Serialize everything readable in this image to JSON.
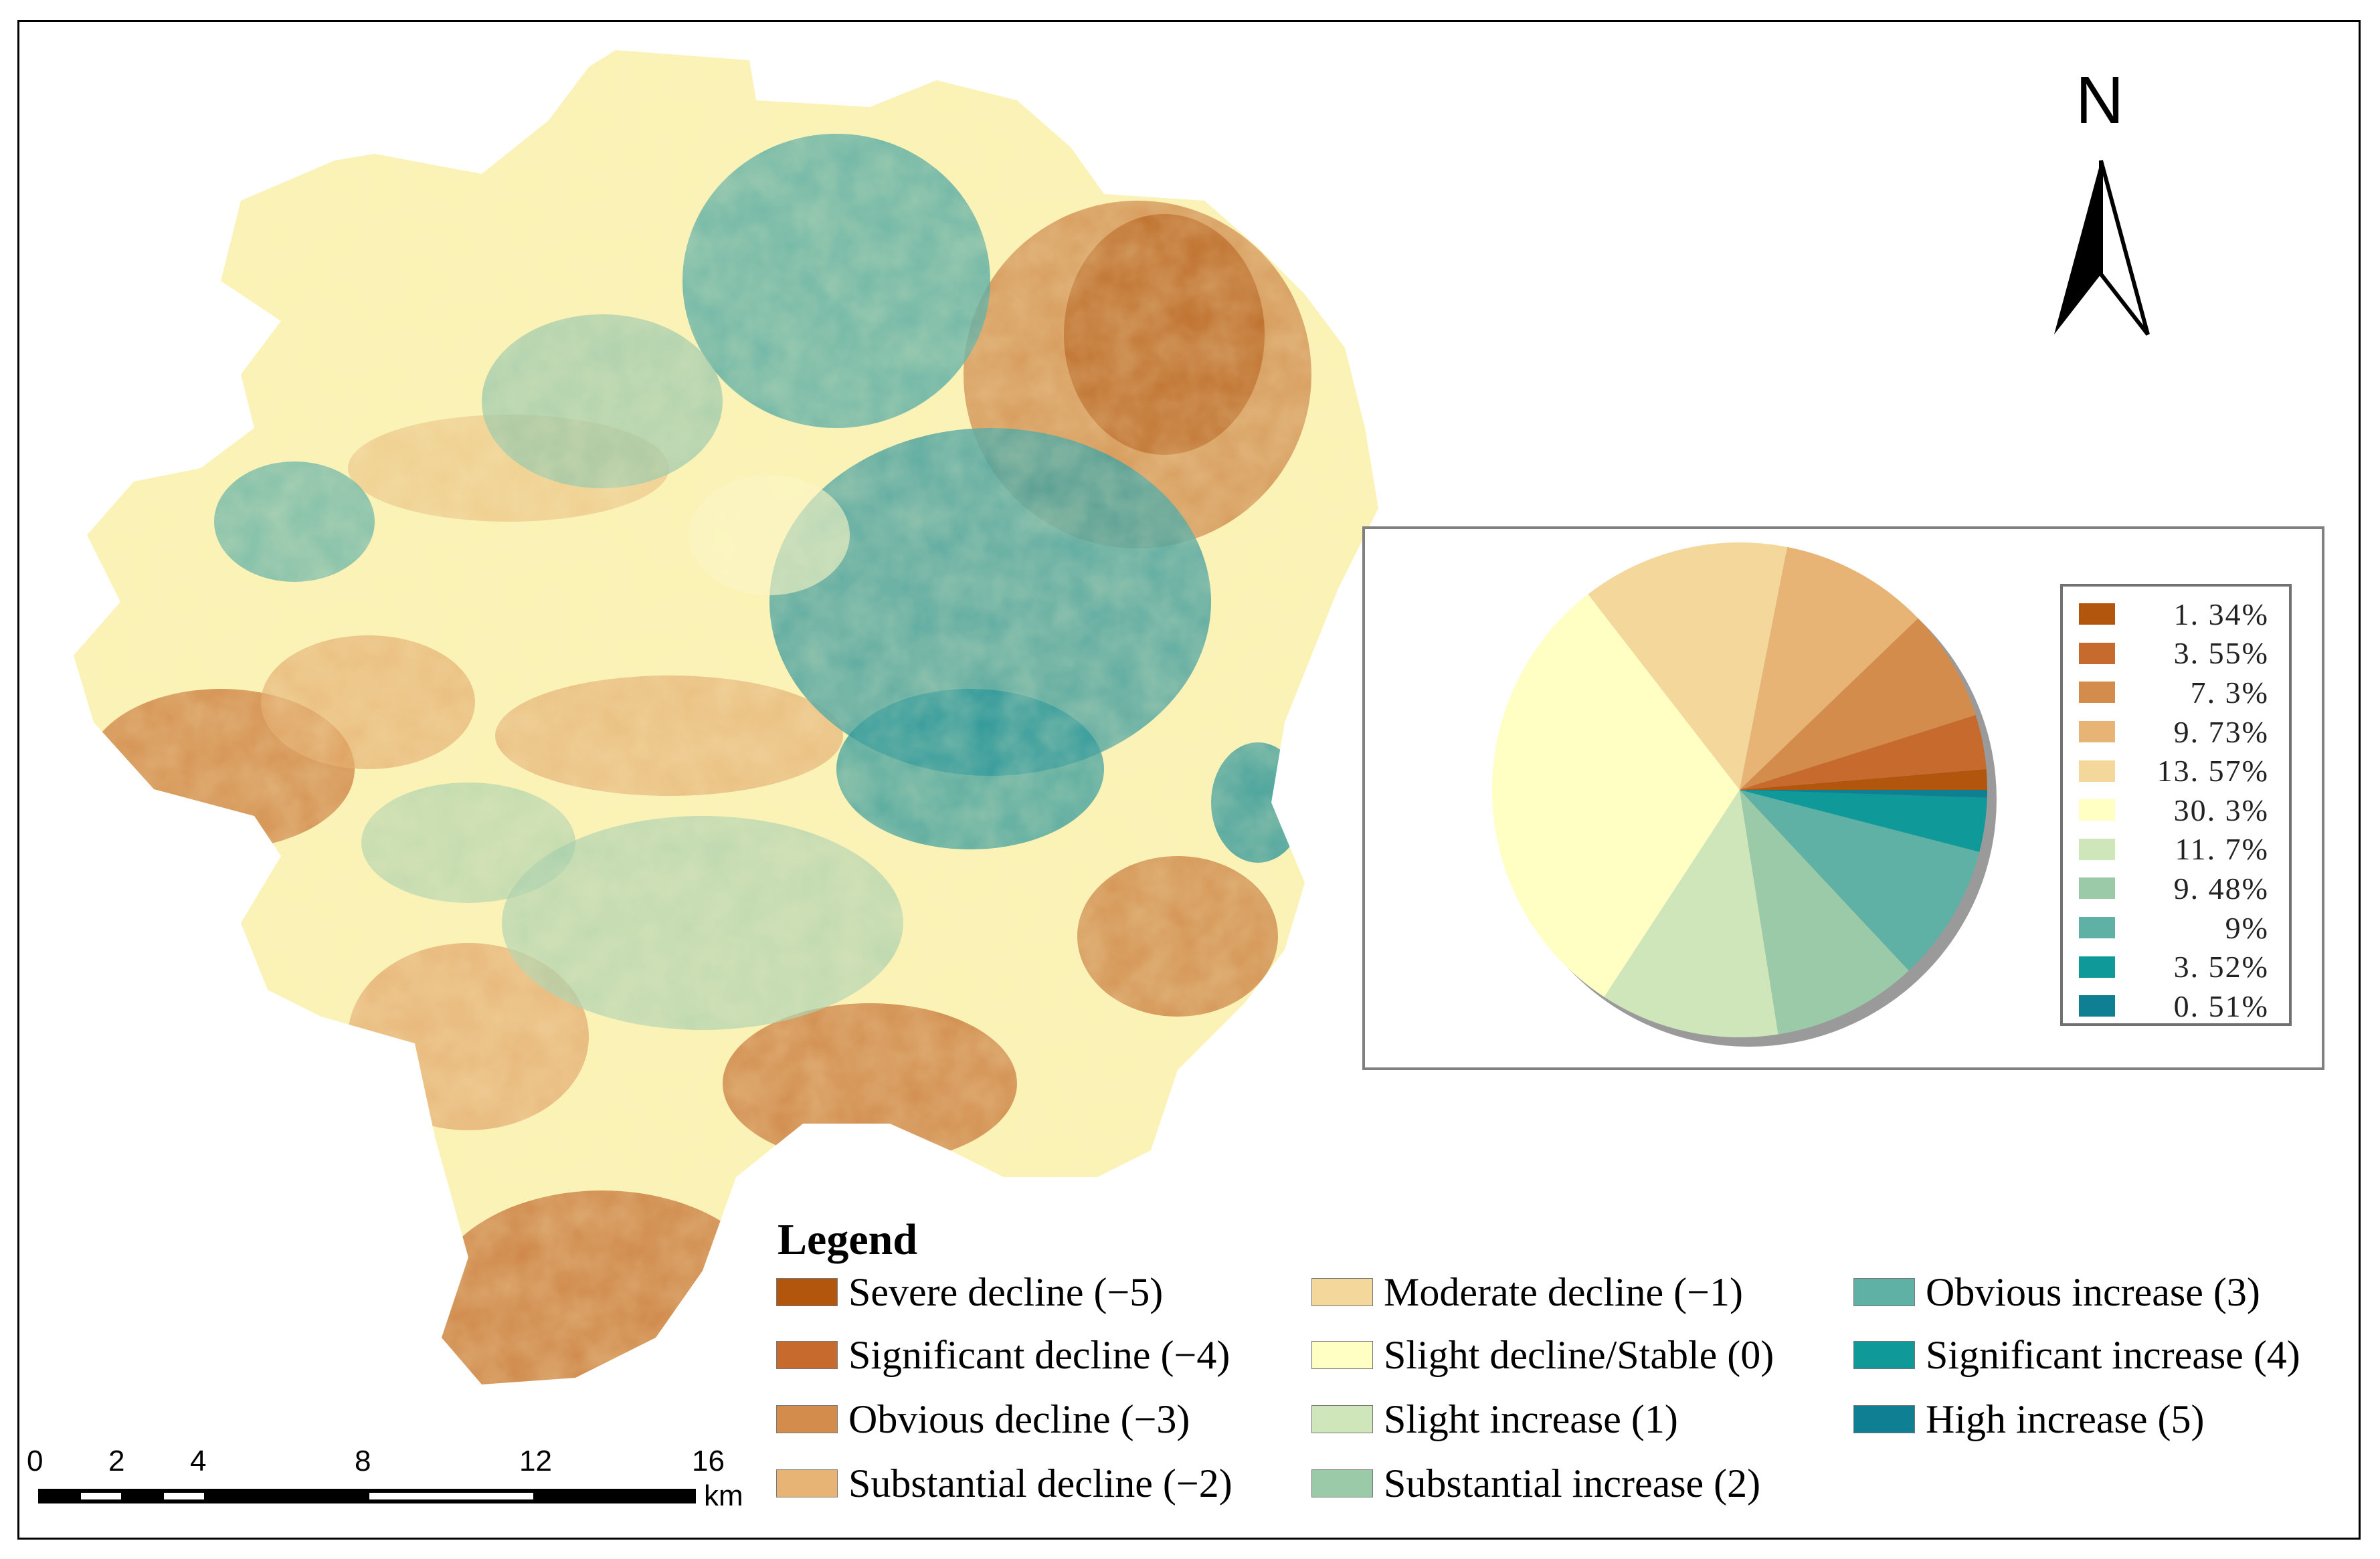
{
  "north_label": "N",
  "pie": {
    "slices": [
      {
        "value": 1.34,
        "color": "#b2560e",
        "label": "1. 34%"
      },
      {
        "value": 3.55,
        "color": "#c66a2e",
        "label": "3. 55%"
      },
      {
        "value": 7.3,
        "color": "#d48c4c",
        "label": "7. 3%"
      },
      {
        "value": 9.73,
        "color": "#e8b475",
        "label": "9. 73%"
      },
      {
        "value": 13.57,
        "color": "#f4d79a",
        "label": "13. 57%"
      },
      {
        "value": 30.3,
        "color": "#ffffc4",
        "label": "30. 3%"
      },
      {
        "value": 11.7,
        "color": "#cfe6bb",
        "label": "11. 7%"
      },
      {
        "value": 9.48,
        "color": "#9bcaa9",
        "label": "9. 48%"
      },
      {
        "value": 9,
        "color": "#5eb1a4",
        "label": "9%"
      },
      {
        "value": 3.52,
        "color": "#0f9999",
        "label": "3. 52%"
      },
      {
        "value": 0.51,
        "color": "#0f7f93",
        "label": "0. 51%"
      }
    ]
  },
  "legend": {
    "title": "Legend",
    "items": [
      {
        "label": "Severe decline (−5)",
        "color": "#b2560e"
      },
      {
        "label": "Significant decline (−4)",
        "color": "#c66a2e"
      },
      {
        "label": "Obvious decline (−3)",
        "color": "#d48c4c"
      },
      {
        "label": "Substantial decline (−2)",
        "color": "#e8b475"
      },
      {
        "label": "Moderate decline (−1)",
        "color": "#f4d79a"
      },
      {
        "label": "Slight decline/Stable (0)",
        "color": "#ffffc4"
      },
      {
        "label": "Slight increase (1)",
        "color": "#cfe6bb"
      },
      {
        "label": "Substantial increase (2)",
        "color": "#9bcaa9"
      },
      {
        "label": "Obvious increase (3)",
        "color": "#5eb1a4"
      },
      {
        "label": "Significant increase (4)",
        "color": "#0f9999"
      },
      {
        "label": "High increase (5)",
        "color": "#0f7f93"
      }
    ]
  },
  "scalebar": {
    "ticks": [
      "0",
      "2",
      "4",
      "8",
      "12",
      "16"
    ],
    "unit": "km"
  }
}
